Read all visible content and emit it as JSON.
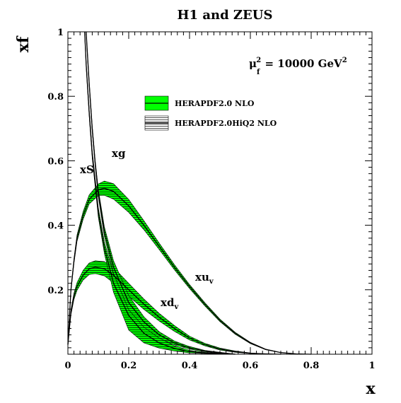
{
  "chart_data": {
    "type": "line",
    "title": "H1 and ZEUS",
    "xlabel": "x",
    "ylabel": "xf",
    "xlim": [
      0,
      1
    ],
    "ylim": [
      0,
      1
    ],
    "x_ticks": [
      "0",
      "0.2",
      "0.4",
      "0.6",
      "0.8",
      "1"
    ],
    "y_ticks": [
      "0.2",
      "0.4",
      "0.6",
      "0.8",
      "1"
    ],
    "scale_label": {
      "mu": "μ",
      "sub": "f",
      "sup": "2",
      "equals": " = 10000 GeV",
      "unit_sup": "2"
    },
    "legend": [
      {
        "label": "HERAPDF2.0 NLO",
        "style": "band",
        "color": "#00ff00"
      },
      {
        "label": "HERAPDF2.0HiQ2 NLO",
        "style": "hatched",
        "color": "#000000"
      }
    ],
    "curve_labels": {
      "xS": "xS",
      "xg": "xg",
      "xuv_main": "xu",
      "xuv_sub": "v",
      "xdv_main": "xd",
      "xdv_sub": "v"
    },
    "series": [
      {
        "id": "xuv",
        "x": [
          0.0,
          0.01,
          0.02,
          0.03,
          0.05,
          0.07,
          0.1,
          0.12,
          0.15,
          0.2,
          0.25,
          0.3,
          0.35,
          0.4,
          0.45,
          0.5,
          0.55,
          0.6,
          0.65,
          0.7,
          0.75,
          0.8
        ],
        "values": [
          0.03,
          0.2,
          0.29,
          0.36,
          0.43,
          0.48,
          0.51,
          0.515,
          0.505,
          0.46,
          0.4,
          0.335,
          0.27,
          0.21,
          0.155,
          0.105,
          0.065,
          0.035,
          0.015,
          0.005,
          0.001,
          0.0
        ],
        "band": [
          0.0,
          0.006,
          0.008,
          0.01,
          0.012,
          0.014,
          0.018,
          0.022,
          0.024,
          0.02,
          0.014,
          0.01,
          0.008,
          0.006,
          0.005,
          0.004,
          0.003,
          0.002,
          0.001,
          0.0,
          0.0,
          0.0
        ]
      },
      {
        "id": "xdv",
        "x": [
          0.0,
          0.01,
          0.02,
          0.03,
          0.05,
          0.07,
          0.09,
          0.12,
          0.15,
          0.2,
          0.25,
          0.3,
          0.35,
          0.4,
          0.45,
          0.5,
          0.55,
          0.6,
          0.65,
          0.7
        ],
        "values": [
          0.03,
          0.13,
          0.18,
          0.21,
          0.245,
          0.265,
          0.27,
          0.265,
          0.245,
          0.2,
          0.155,
          0.115,
          0.08,
          0.05,
          0.03,
          0.016,
          0.008,
          0.003,
          0.001,
          0.0
        ],
        "band": [
          0.0,
          0.008,
          0.01,
          0.012,
          0.015,
          0.018,
          0.02,
          0.022,
          0.024,
          0.02,
          0.016,
          0.012,
          0.009,
          0.006,
          0.004,
          0.003,
          0.002,
          0.001,
          0.0,
          0.0
        ]
      },
      {
        "id": "xg",
        "x": [
          0.055,
          0.06,
          0.07,
          0.08,
          0.1,
          0.12,
          0.15,
          0.2,
          0.25,
          0.3,
          0.35,
          0.4,
          0.45,
          0.5,
          0.55
        ],
        "values": [
          1.0,
          0.9,
          0.75,
          0.62,
          0.44,
          0.33,
          0.22,
          0.12,
          0.065,
          0.035,
          0.018,
          0.008,
          0.004,
          0.002,
          0.0
        ],
        "band": [
          0.01,
          0.01,
          0.012,
          0.012,
          0.015,
          0.018,
          0.028,
          0.045,
          0.03,
          0.016,
          0.008,
          0.004,
          0.002,
          0.001,
          0.0
        ]
      },
      {
        "id": "xS",
        "x": [
          0.06,
          0.07,
          0.08,
          0.09,
          0.1,
          0.12,
          0.15,
          0.2,
          0.25,
          0.3,
          0.35,
          0.4,
          0.45,
          0.5,
          0.55
        ],
        "values": [
          1.0,
          0.84,
          0.7,
          0.59,
          0.5,
          0.38,
          0.27,
          0.16,
          0.1,
          0.06,
          0.035,
          0.02,
          0.01,
          0.005,
          0.0
        ],
        "band": [
          0.008,
          0.008,
          0.01,
          0.01,
          0.012,
          0.015,
          0.02,
          0.022,
          0.016,
          0.01,
          0.006,
          0.004,
          0.002,
          0.001,
          0.0
        ]
      }
    ]
  }
}
